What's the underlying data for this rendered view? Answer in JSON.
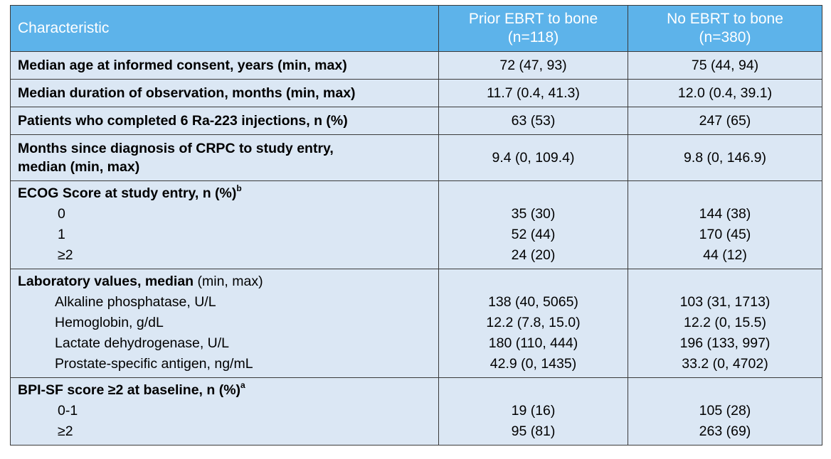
{
  "header": {
    "characteristic": "Characteristic",
    "col1_line1": "Prior EBRT to bone",
    "col1_line2": "(n=118)",
    "col2_line1": "No EBRT to bone",
    "col2_line2": "(n=380)"
  },
  "rows": {
    "age": {
      "label": "Median age at informed consent, years (min, max)",
      "c1": "72 (47, 93)",
      "c2": "75 (44, 94)"
    },
    "observation": {
      "label": "Median duration of observation, months (min, max)",
      "c1": "11.7 (0.4, 41.3)",
      "c2": "12.0 (0.4, 39.1)"
    },
    "completed": {
      "label": "Patients who completed 6 Ra-223 injections, n (%)",
      "c1": "63 (53)",
      "c2": "247 (65)"
    },
    "crpc": {
      "label_line1": "Months since diagnosis of CRPC to study entry,",
      "label_line2": "median (min, max)",
      "c1": "9.4 (0, 109.4)",
      "c2": "9.8 (0, 146.9)"
    },
    "ecog": {
      "label": "ECOG Score at study entry, n (%)",
      "sup": "b",
      "items": [
        {
          "label": "0",
          "c1": "35 (30)",
          "c2": "144 (38)"
        },
        {
          "label": "1",
          "c1": "52 (44)",
          "c2": "170 (45)"
        },
        {
          "label": "≥2",
          "c1": "24 (20)",
          "c2": "44 (12)"
        }
      ]
    },
    "lab": {
      "label_bold": "Laboratory values, median",
      "label_rest": " (min, max)",
      "items": [
        {
          "label": "Alkaline phosphatase, U/L",
          "c1": "138 (40, 5065)",
          "c2": "103 (31, 1713)"
        },
        {
          "label": "Hemoglobin, g/dL",
          "c1": "12.2 (7.8, 15.0)",
          "c2": "12.2 (0, 15.5)"
        },
        {
          "label": "Lactate dehydrogenase, U/L",
          "c1": "180 (110, 444)",
          "c2": "196 (133, 997)"
        },
        {
          "label": "Prostate-specific antigen, ng/mL",
          "c1": "42.9 (0, 1435)",
          "c2": "33.2 (0, 4702)"
        }
      ]
    },
    "bpi": {
      "label": "BPI-SF score ≥2 at baseline, n (%)",
      "sup": "a",
      "items": [
        {
          "label": "0-1",
          "c1": "19 (16)",
          "c2": "105 (28)"
        },
        {
          "label": "≥2",
          "c1": "95 (81)",
          "c2": "263 (69)"
        }
      ]
    }
  }
}
